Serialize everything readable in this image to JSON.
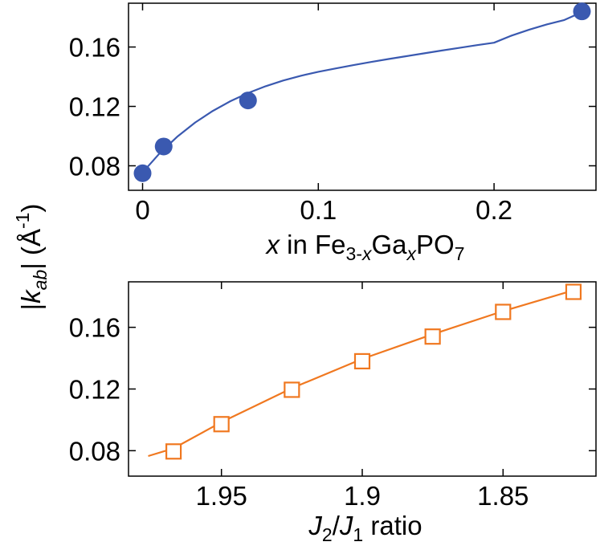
{
  "chart_data": [
    {
      "type": "scatter",
      "panel": "top",
      "xlabel": {
        "prefix": "x",
        "mid": " in Fe",
        "sub1": "3-",
        "sub1i": "x",
        "mid2": "Ga",
        "sub2": "x",
        "mid3": "PO",
        "sub3": "7"
      },
      "xlim": [
        -0.008,
        0.258
      ],
      "ylim": [
        0.0635,
        0.1895
      ],
      "xticks": [
        0,
        0.1,
        0.2
      ],
      "xtick_labels": [
        "0",
        "0.1",
        "0.2"
      ],
      "yticks": [
        0.08,
        0.12,
        0.16
      ],
      "ytick_labels": [
        "0.08",
        "0.12",
        "0.16"
      ],
      "series": [
        {
          "name": "data",
          "color": "#3a59b0",
          "marker": "filled-circle",
          "x": [
            0,
            0.012,
            0.06,
            0.25
          ],
          "y": [
            0.075,
            0.093,
            0.124,
            0.184
          ]
        },
        {
          "name": "fit",
          "color": "#3a59b0",
          "marker": "line",
          "x": [
            0,
            0.01,
            0.02,
            0.03,
            0.04,
            0.05,
            0.06,
            0.07,
            0.08,
            0.09,
            0.1,
            0.11,
            0.12,
            0.13,
            0.14,
            0.15,
            0.16,
            0.17,
            0.18,
            0.19,
            0.2,
            0.21,
            0.22,
            0.23,
            0.24,
            0.25
          ],
          "y": [
            0.0755,
            0.0888,
            0.0999,
            0.1092,
            0.117,
            0.1235,
            0.129,
            0.1336,
            0.1374,
            0.1406,
            0.1433,
            0.1456,
            0.1478,
            0.1499,
            0.1519,
            0.1538,
            0.1557,
            0.1576,
            0.1594,
            0.1612,
            0.1629,
            0.1677,
            0.1717,
            0.1752,
            0.1782,
            0.1835
          ]
        }
      ]
    },
    {
      "type": "line",
      "panel": "bottom",
      "xlabel": {
        "j2": "J",
        "j2sub": "2",
        "slash": "/",
        "j1": "J",
        "j1sub": "1",
        "rest": " ratio"
      },
      "xlim": [
        1.983,
        1.817
      ],
      "ylim": [
        0.0635,
        0.1895
      ],
      "xticks": [
        1.95,
        1.9,
        1.85
      ],
      "xtick_labels": [
        "1.95",
        "1.9",
        "1.85"
      ],
      "yticks": [
        0.08,
        0.12,
        0.16
      ],
      "ytick_labels": [
        "0.08",
        "0.12",
        "0.16"
      ],
      "series": [
        {
          "name": "data",
          "color": "#f07820",
          "marker": "open-square",
          "x": [
            1.967,
            1.95,
            1.925,
            1.9,
            1.875,
            1.85,
            1.825
          ],
          "y": [
            0.0795,
            0.0972,
            0.1195,
            0.138,
            0.154,
            0.17,
            0.183
          ]
        },
        {
          "name": "fit",
          "color": "#f07820",
          "marker": "line",
          "x": [
            1.976,
            1.967,
            1.95,
            1.925,
            1.9,
            1.875,
            1.85,
            1.825
          ],
          "y": [
            0.0765,
            0.0815,
            0.0985,
            0.1205,
            0.1395,
            0.1555,
            0.1705,
            0.184
          ]
        }
      ]
    }
  ],
  "ylabel": {
    "pre": "|",
    "k": "k",
    "ksub": "ab",
    "post": "| (Å",
    "sup": "-1",
    "close": ")"
  }
}
